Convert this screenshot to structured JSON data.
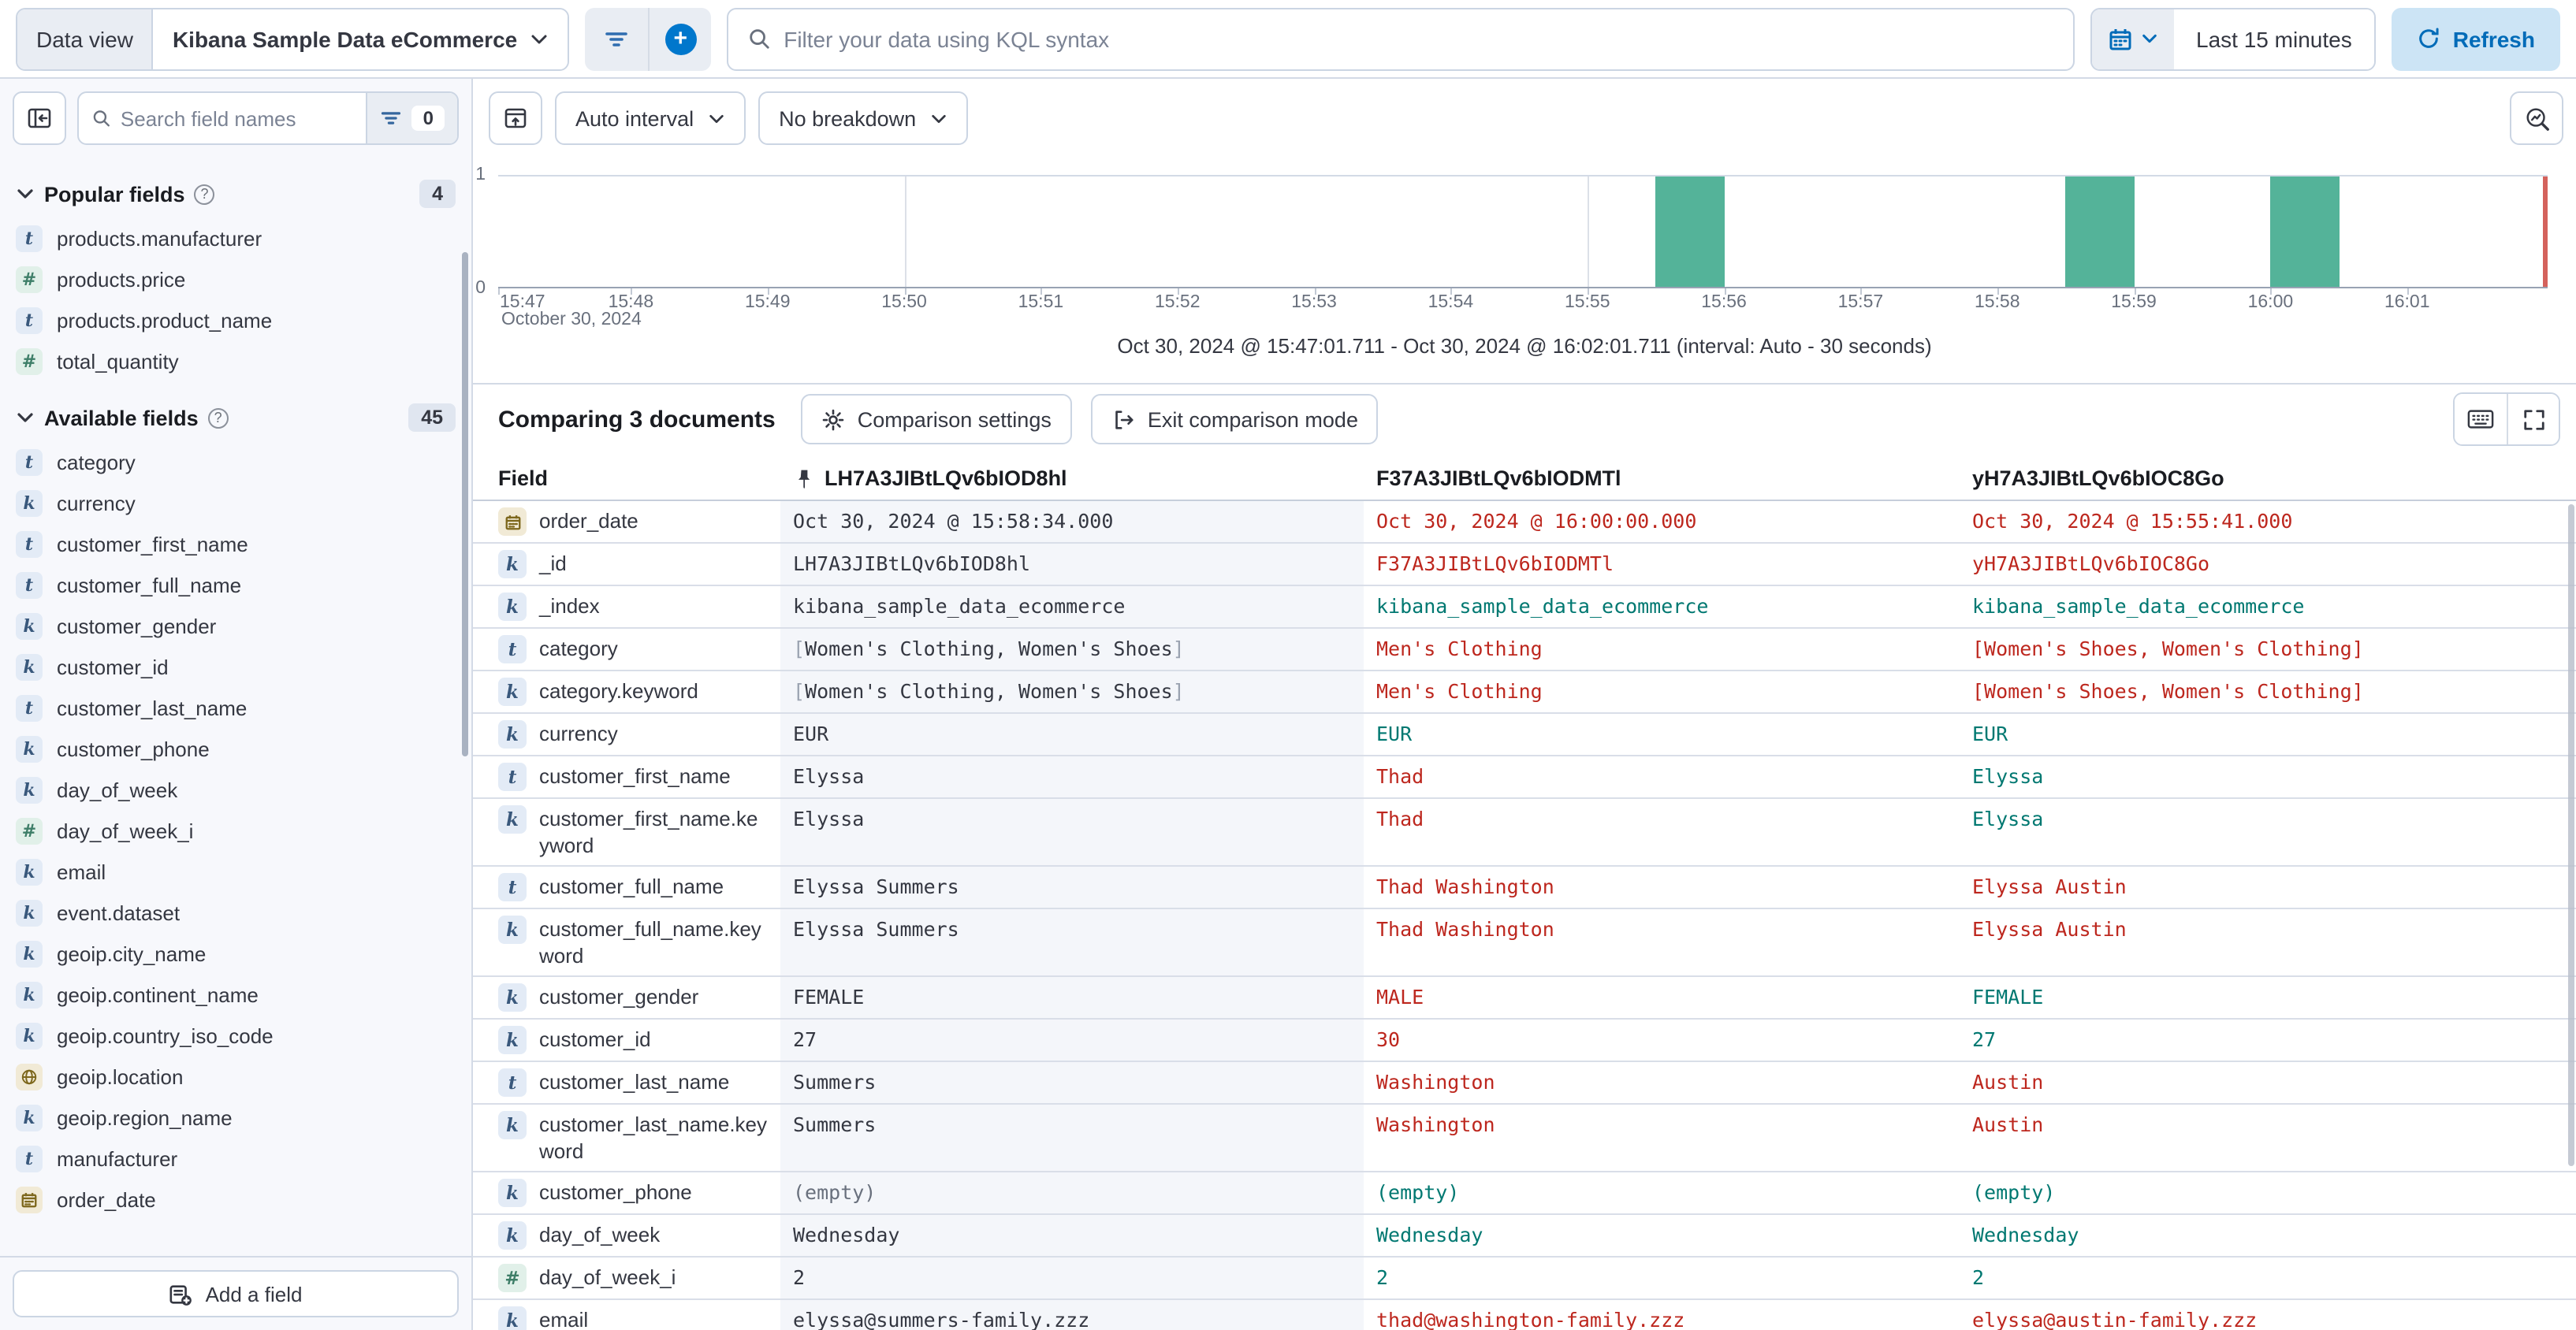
{
  "topbar": {
    "data_view_label": "Data view",
    "data_view_value": "Kibana Sample Data eCommerce",
    "kql_placeholder": "Filter your data using KQL syntax",
    "time_range": "Last 15 minutes",
    "refresh_label": "Refresh"
  },
  "sidebar": {
    "search_placeholder": "Search field names",
    "filter_count": "0",
    "popular": {
      "title": "Popular fields",
      "count": "4",
      "items": [
        {
          "type": "t",
          "name": "products.manufacturer"
        },
        {
          "type": "num",
          "name": "products.price"
        },
        {
          "type": "t",
          "name": "products.product_name"
        },
        {
          "type": "num",
          "name": "total_quantity"
        }
      ]
    },
    "available": {
      "title": "Available fields",
      "count": "45",
      "items": [
        {
          "type": "t",
          "name": "category"
        },
        {
          "type": "k",
          "name": "currency"
        },
        {
          "type": "t",
          "name": "customer_first_name"
        },
        {
          "type": "t",
          "name": "customer_full_name"
        },
        {
          "type": "k",
          "name": "customer_gender"
        },
        {
          "type": "k",
          "name": "customer_id"
        },
        {
          "type": "t",
          "name": "customer_last_name"
        },
        {
          "type": "k",
          "name": "customer_phone"
        },
        {
          "type": "k",
          "name": "day_of_week"
        },
        {
          "type": "num",
          "name": "day_of_week_i"
        },
        {
          "type": "k",
          "name": "email"
        },
        {
          "type": "k",
          "name": "event.dataset"
        },
        {
          "type": "k",
          "name": "geoip.city_name"
        },
        {
          "type": "k",
          "name": "geoip.continent_name"
        },
        {
          "type": "k",
          "name": "geoip.country_iso_code"
        },
        {
          "type": "geo",
          "name": "geoip.location"
        },
        {
          "type": "k",
          "name": "geoip.region_name"
        },
        {
          "type": "t",
          "name": "manufacturer"
        },
        {
          "type": "date",
          "name": "order_date"
        }
      ]
    },
    "add_field_label": "Add a field"
  },
  "chart": {
    "interval_label": "Auto interval",
    "breakdown_label": "No breakdown",
    "footer": "Oct 30, 2024 @ 15:47:01.711 - Oct 30, 2024 @ 16:02:01.711 (interval: Auto - 30 seconds)",
    "chart_data": {
      "type": "bar",
      "x_start": "15:47:01.711",
      "x_end": "16:02:01.711",
      "bucket_seconds": 30,
      "x_ticks": [
        "15:47",
        "15:48",
        "15:49",
        "15:50",
        "15:51",
        "15:52",
        "15:53",
        "15:54",
        "15:55",
        "15:56",
        "15:57",
        "15:58",
        "15:59",
        "16:00",
        "16:01"
      ],
      "x_subtitle": "October 30, 2024",
      "y_ticks": [
        "1",
        "0"
      ],
      "ylim": [
        0,
        1
      ],
      "gridlines": [
        "15:50",
        "15:55",
        "16:00"
      ],
      "bars": [
        {
          "time": "15:55:30",
          "value": 1
        },
        {
          "time": "15:58:30",
          "value": 1
        },
        {
          "time": "16:00:00",
          "value": 1
        }
      ],
      "current_time_marker": "16:02:01.711",
      "bar_color": "#54B399",
      "marker_color": "#D4625C",
      "legend": "off"
    }
  },
  "comparison": {
    "title": "Comparing 3 documents",
    "settings_label": "Comparison settings",
    "exit_label": "Exit comparison mode"
  },
  "table": {
    "field_header": "Field",
    "doc_headers": [
      "LH7A3JIBtLQv6bIOD8hl",
      "F37A3JIBtLQv6bIODMTl",
      "yH7A3JIBtLQv6bIOC8Go"
    ],
    "rows": [
      {
        "icon": "date",
        "field": "order_date",
        "base": "Oct 30, 2024 @ 15:58:34.000",
        "doc2": {
          "v": "Oct 30, 2024 @ 16:00:00.000",
          "s": "diff"
        },
        "doc3": {
          "v": "Oct 30, 2024 @ 15:55:41.000",
          "s": "diff"
        }
      },
      {
        "icon": "k",
        "field": "_id",
        "base": "LH7A3JIBtLQv6bIOD8hl",
        "doc2": {
          "v": "F37A3JIBtLQv6bIODMTl",
          "s": "diff"
        },
        "doc3": {
          "v": "yH7A3JIBtLQv6bIOC8Go",
          "s": "diff"
        }
      },
      {
        "icon": "k",
        "field": "_index",
        "base": "kibana_sample_data_ecommerce",
        "doc2": {
          "v": "kibana_sample_data_ecommerce",
          "s": "match"
        },
        "doc3": {
          "v": "kibana_sample_data_ecommerce",
          "s": "match"
        }
      },
      {
        "icon": "t",
        "field": "category",
        "base": "[Women's Clothing, Women's Shoes]",
        "doc2": {
          "v": "Men's Clothing",
          "s": "diff"
        },
        "doc3": {
          "v": "[Women's Shoes, Women's Clothing]",
          "s": "diff"
        }
      },
      {
        "icon": "k",
        "field": "category.keyword",
        "base": "[Women's Clothing, Women's Shoes]",
        "doc2": {
          "v": "Men's Clothing",
          "s": "diff"
        },
        "doc3": {
          "v": "[Women's Shoes, Women's Clothing]",
          "s": "diff"
        }
      },
      {
        "icon": "k",
        "field": "currency",
        "base": "EUR",
        "doc2": {
          "v": "EUR",
          "s": "match"
        },
        "doc3": {
          "v": "EUR",
          "s": "match"
        }
      },
      {
        "icon": "t",
        "field": "customer_first_name",
        "base": "Elyssa",
        "doc2": {
          "v": "Thad",
          "s": "diff"
        },
        "doc3": {
          "v": "Elyssa",
          "s": "match"
        }
      },
      {
        "icon": "k",
        "field": "customer_first_name.keyword",
        "base": "Elyssa",
        "doc2": {
          "v": "Thad",
          "s": "diff"
        },
        "doc3": {
          "v": "Elyssa",
          "s": "match"
        }
      },
      {
        "icon": "t",
        "field": "customer_full_name",
        "base": "Elyssa Summers",
        "doc2": {
          "v": "Thad Washington",
          "s": "diff"
        },
        "doc3": {
          "v": "Elyssa Austin",
          "s": "diff"
        }
      },
      {
        "icon": "k",
        "field": "customer_full_name.keyword",
        "base": "Elyssa Summers",
        "doc2": {
          "v": "Thad Washington",
          "s": "diff"
        },
        "doc3": {
          "v": "Elyssa Austin",
          "s": "diff"
        }
      },
      {
        "icon": "k",
        "field": "customer_gender",
        "base": "FEMALE",
        "doc2": {
          "v": "MALE",
          "s": "diff"
        },
        "doc3": {
          "v": "FEMALE",
          "s": "match"
        }
      },
      {
        "icon": "k",
        "field": "customer_id",
        "base": "27",
        "doc2": {
          "v": "30",
          "s": "diff"
        },
        "doc3": {
          "v": "27",
          "s": "match"
        }
      },
      {
        "icon": "t",
        "field": "customer_last_name",
        "base": "Summers",
        "doc2": {
          "v": "Washington",
          "s": "diff"
        },
        "doc3": {
          "v": "Austin",
          "s": "diff"
        }
      },
      {
        "icon": "k",
        "field": "customer_last_name.keyword",
        "base": "Summers",
        "doc2": {
          "v": "Washington",
          "s": "diff"
        },
        "doc3": {
          "v": "Austin",
          "s": "diff"
        }
      },
      {
        "icon": "k",
        "field": "customer_phone",
        "base": "(empty)",
        "doc2": {
          "v": "(empty)",
          "s": "match"
        },
        "doc3": {
          "v": "(empty)",
          "s": "match"
        }
      },
      {
        "icon": "k",
        "field": "day_of_week",
        "base": "Wednesday",
        "doc2": {
          "v": "Wednesday",
          "s": "match"
        },
        "doc3": {
          "v": "Wednesday",
          "s": "match"
        }
      },
      {
        "icon": "num",
        "field": "day_of_week_i",
        "base": "2",
        "doc2": {
          "v": "2",
          "s": "match"
        },
        "doc3": {
          "v": "2",
          "s": "match"
        }
      },
      {
        "icon": "k",
        "field": "email",
        "base": "elyssa@summers-family.zzz",
        "doc2": {
          "v": "thad@washington-family.zzz",
          "s": "diff"
        },
        "doc3": {
          "v": "elyssa@austin-family.zzz",
          "s": "diff"
        }
      }
    ]
  }
}
